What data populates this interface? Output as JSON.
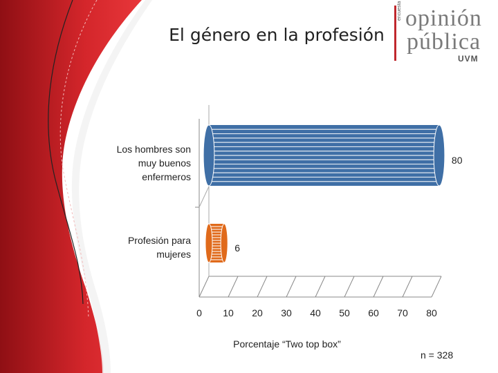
{
  "slide": {
    "title": "El género en la profesión",
    "sample_note": "n = 328"
  },
  "logo": {
    "line1": "opinión",
    "line2": "pública",
    "line3": "UVM",
    "side_text": "encuesta"
  },
  "chart_data": {
    "type": "bar",
    "orientation": "horizontal",
    "categories": [
      "Los hombres son muy buenos enfermeros",
      "Profesión para mujeres"
    ],
    "category_labels": [
      "Los hombres son\nmuy buenos\nenfermeros",
      "Profesión para\nmujeres"
    ],
    "values": [
      80,
      6
    ],
    "value_labels": [
      "80",
      "6"
    ],
    "xlabel": "Porcentaje “Two top box”",
    "xlim": [
      0,
      80
    ],
    "xticks": [
      0,
      10,
      20,
      30,
      40,
      50,
      60,
      70,
      80
    ],
    "colors": [
      "#3f6fa6",
      "#e06a1b"
    ]
  }
}
